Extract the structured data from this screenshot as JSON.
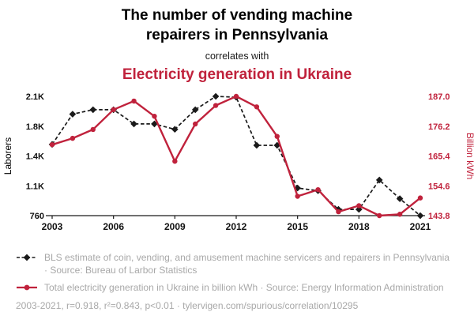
{
  "accent_red": "#c0223c",
  "text_gray": "#a8a8a8",
  "header": {
    "title": "The number of vending machine repairers in Pennsylvania",
    "subtitle": "correlates with",
    "red_title": "Electricity generation in Ukraine"
  },
  "chart_data": {
    "type": "line",
    "grid": false,
    "legend_position": "bottom",
    "x": [
      2003,
      2004,
      2005,
      2006,
      2007,
      2008,
      2009,
      2010,
      2011,
      2012,
      2013,
      2014,
      2015,
      2016,
      2017,
      2018,
      2019,
      2020,
      2021
    ],
    "x_ticks": [
      2003,
      2006,
      2009,
      2012,
      2015,
      2018,
      2021
    ],
    "left_axis": {
      "label": "Laborers",
      "min": 760,
      "max": 2100,
      "ticks": [
        760,
        1095,
        1430,
        1765,
        2100
      ],
      "tick_labels": [
        "760",
        "1.1K",
        "1.4K",
        "1.8K",
        "2.1K"
      ]
    },
    "right_axis": {
      "label": "Billion kWh",
      "min": 143.8,
      "max": 187.0,
      "ticks": [
        143.8,
        154.6,
        165.4,
        176.2,
        187.0
      ],
      "tick_labels": [
        "143.8",
        "154.6",
        "165.4",
        "176.2",
        "187.0"
      ]
    },
    "series": [
      {
        "name": "BLS estimate of vending machine repairers in Pennsylvania",
        "axis": "left",
        "color": "#1a1a1a",
        "line": "dashed",
        "marker": "diamond",
        "values": [
          1560,
          1900,
          1950,
          1950,
          1790,
          1790,
          1730,
          1950,
          2100,
          2090,
          1550,
          1550,
          1070,
          1040,
          830,
          830,
          1160,
          950,
          760
        ]
      },
      {
        "name": "Total electricity generation in Ukraine",
        "axis": "right",
        "color": "#c0223c",
        "line": "solid",
        "marker": "circle",
        "values": [
          169.5,
          171.8,
          175.0,
          182.2,
          185.3,
          179.8,
          163.5,
          177.0,
          183.7,
          187.0,
          183.2,
          172.5,
          150.8,
          153.2,
          145.2,
          147.4,
          143.8,
          144.3,
          150.2
        ]
      }
    ]
  },
  "legend": {
    "entries": [
      {
        "text": "BLS estimate of coin, vending, and amusement machine servicers and repairers in Pennsylvania · Source: Bureau of Larbor Statistics"
      },
      {
        "text": "Total electricity generation in Ukraine in billion kWh · Source: Energy Information Administration"
      }
    ],
    "footer": "2003-2021, r=0.918, r²=0.843, p<0.01 · tylervigen.com/spurious/correlation/10295"
  }
}
